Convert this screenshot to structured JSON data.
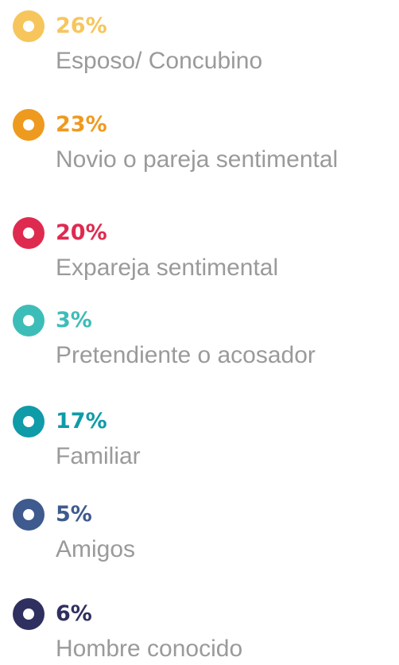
{
  "chart_data": {
    "type": "legend",
    "categories": [
      "Esposo/ Concubino",
      "Novio o pareja sentimental",
      "Expareja sentimental",
      "Pretendiente o acosador",
      "Familiar",
      "Amigos",
      "Hombre conocido"
    ],
    "values": [
      26,
      23,
      20,
      3,
      17,
      5,
      6
    ],
    "value_labels": [
      "26%",
      "23%",
      "20%",
      "3%",
      "17%",
      "5%",
      "6%"
    ],
    "colors": [
      "#f6c65c",
      "#ee9a1f",
      "#df2a50",
      "#3dbdb8",
      "#0f9ba8",
      "#3e5a8e",
      "#2f305f"
    ]
  }
}
